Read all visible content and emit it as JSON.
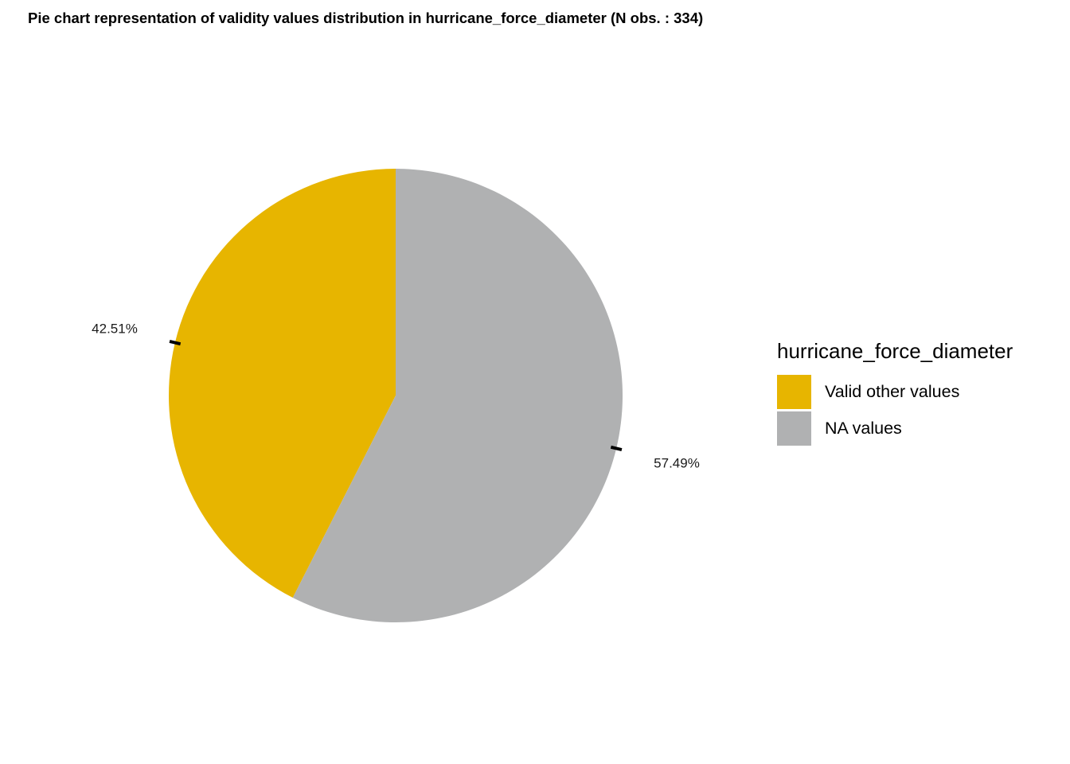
{
  "chart_data": {
    "type": "pie",
    "title": "Pie chart representation of validity values distribution in hurricane_force_diameter (N obs. : 334)",
    "legend": {
      "title": "hurricane_force_diameter",
      "placement": "right"
    },
    "slices": [
      {
        "label": "Valid other values",
        "value": 42.51,
        "value_label": "42.51%",
        "color": "#E7B500"
      },
      {
        "label": "NA values",
        "value": 57.49,
        "value_label": "57.49%",
        "color": "#B0B1B2"
      }
    ]
  }
}
